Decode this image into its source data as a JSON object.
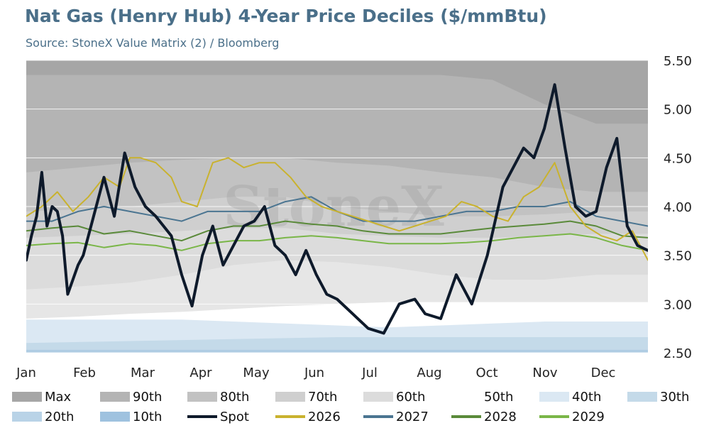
{
  "header": {
    "title": "Nat Gas (Henry Hub) 4-Year Price Deciles ($/mmBtu)",
    "subtitle": "Source: StoneX Value Matrix (2) / Bloomberg"
  },
  "watermark": "StoneX",
  "chart_data": {
    "type": "area",
    "title": "Nat Gas (Henry Hub) 4-Year Price Deciles ($/mmBtu)",
    "x_ticks": [
      "Jan",
      "Feb",
      "Mar",
      "Apr",
      "May",
      "Jun",
      "Jul",
      "Aug",
      "Oct",
      "Nov",
      "Dec"
    ],
    "x_domain": [
      0,
      12
    ],
    "y_ticks": [
      "5.50",
      "5.00",
      "4.50",
      "4.00",
      "3.50",
      "3.00",
      "2.50"
    ],
    "ylim": [
      2.5,
      5.5
    ],
    "y_axis_side": "right",
    "grid": "horizontal",
    "legend_position": "bottom",
    "bands": {
      "x": [
        0,
        1,
        2,
        3,
        4,
        5,
        6,
        7,
        8,
        9,
        10,
        11,
        12
      ],
      "series": [
        {
          "name": "Max",
          "color": "#a6a6a6",
          "values": [
            5.5,
            5.5,
            5.5,
            5.5,
            5.5,
            5.5,
            5.5,
            5.5,
            5.5,
            5.5,
            5.5,
            5.5,
            5.5
          ]
        },
        {
          "name": "90th",
          "color": "#b4b4b4",
          "values": [
            5.35,
            5.35,
            5.35,
            5.35,
            5.35,
            5.35,
            5.35,
            5.35,
            5.35,
            5.3,
            5.05,
            4.85,
            4.85
          ]
        },
        {
          "name": "80th",
          "color": "#c2c2c2",
          "values": [
            4.35,
            4.4,
            4.45,
            4.48,
            4.5,
            4.5,
            4.45,
            4.42,
            4.35,
            4.3,
            4.2,
            4.15,
            4.15
          ]
        },
        {
          "name": "70th",
          "color": "#cfcfcf",
          "values": [
            3.95,
            3.97,
            4.0,
            4.05,
            4.1,
            4.1,
            4.0,
            3.95,
            3.9,
            3.9,
            3.92,
            3.95,
            3.95
          ]
        },
        {
          "name": "60th",
          "color": "#dcdcdc",
          "values": [
            3.68,
            3.7,
            3.72,
            3.75,
            3.78,
            3.78,
            3.72,
            3.7,
            3.68,
            3.68,
            3.7,
            3.72,
            3.72
          ]
        },
        {
          "name": "50th",
          "color": "#e6e6e6",
          "values": [
            3.15,
            3.18,
            3.22,
            3.3,
            3.4,
            3.45,
            3.43,
            3.38,
            3.3,
            3.25,
            3.25,
            3.3,
            3.3
          ]
        },
        {
          "name": "40th",
          "color": "#ffffff",
          "values": [
            2.85,
            2.87,
            2.9,
            2.92,
            2.95,
            2.98,
            3.0,
            3.02,
            3.02,
            3.02,
            3.02,
            3.02,
            3.02
          ]
        },
        {
          "name": "30th",
          "color": "#dbe8f3",
          "values": [
            2.84,
            2.84,
            2.84,
            2.84,
            2.82,
            2.8,
            2.78,
            2.76,
            2.78,
            2.8,
            2.82,
            2.82,
            2.82
          ]
        },
        {
          "name": "20th",
          "color": "#c4dae9",
          "values": [
            2.6,
            2.61,
            2.62,
            2.63,
            2.64,
            2.65,
            2.66,
            2.66,
            2.66,
            2.66,
            2.66,
            2.66,
            2.66
          ]
        },
        {
          "name": "10th",
          "color": "#afcce3",
          "values": [
            2.53,
            2.53,
            2.53,
            2.53,
            2.53,
            2.53,
            2.53,
            2.53,
            2.53,
            2.53,
            2.53,
            2.53,
            2.53
          ]
        }
      ]
    },
    "lines": [
      {
        "name": "Spot",
        "color": "#0e1a2b",
        "width": 4,
        "x": [
          0,
          0.1,
          0.2,
          0.3,
          0.4,
          0.5,
          0.6,
          0.7,
          0.8,
          0.9,
          1.0,
          1.1,
          1.3,
          1.5,
          1.7,
          1.9,
          2.1,
          2.2,
          2.3,
          2.5,
          2.8,
          3.0,
          3.2,
          3.4,
          3.6,
          3.8,
          4.0,
          4.2,
          4.4,
          4.6,
          4.8,
          5.0,
          5.2,
          5.4,
          5.6,
          5.8,
          6.0,
          6.3,
          6.6,
          6.9,
          7.2,
          7.5,
          7.7,
          8.0,
          8.3,
          8.6,
          8.9,
          9.2,
          9.4,
          9.6,
          9.8,
          10.0,
          10.2,
          10.4,
          10.6,
          10.8,
          11.0,
          11.2,
          11.4,
          11.6,
          11.8,
          12.0
        ],
        "values": [
          3.45,
          3.7,
          3.9,
          4.35,
          3.8,
          4.0,
          3.95,
          3.7,
          3.1,
          3.25,
          3.4,
          3.5,
          3.9,
          4.3,
          3.9,
          4.55,
          4.2,
          4.1,
          4.0,
          3.9,
          3.7,
          3.3,
          2.98,
          3.5,
          3.8,
          3.4,
          3.6,
          3.8,
          3.85,
          4.0,
          3.6,
          3.5,
          3.3,
          3.55,
          3.3,
          3.1,
          3.05,
          2.9,
          2.75,
          2.7,
          3.0,
          3.05,
          2.9,
          2.85,
          3.3,
          3.0,
          3.5,
          4.2,
          4.4,
          4.6,
          4.5,
          4.8,
          5.25,
          4.6,
          4.0,
          3.9,
          3.95,
          4.4,
          4.7,
          3.8,
          3.6,
          3.55
        ]
      },
      {
        "name": "2026",
        "color": "#c9b22e",
        "width": 2,
        "x": [
          0,
          0.3,
          0.6,
          0.9,
          1.2,
          1.5,
          1.8,
          2.0,
          2.2,
          2.5,
          2.8,
          3.0,
          3.3,
          3.6,
          3.9,
          4.2,
          4.5,
          4.8,
          5.1,
          5.4,
          5.7,
          6.0,
          6.3,
          6.6,
          6.9,
          7.2,
          7.5,
          7.8,
          8.1,
          8.4,
          8.7,
          9.0,
          9.3,
          9.6,
          9.9,
          10.2,
          10.5,
          10.8,
          11.1,
          11.4,
          11.7,
          12.0
        ],
        "values": [
          3.9,
          4.0,
          4.15,
          3.95,
          4.1,
          4.3,
          4.2,
          4.5,
          4.5,
          4.45,
          4.3,
          4.05,
          4.0,
          4.45,
          4.5,
          4.4,
          4.45,
          4.45,
          4.3,
          4.1,
          4.0,
          3.95,
          3.9,
          3.85,
          3.8,
          3.75,
          3.8,
          3.85,
          3.9,
          4.05,
          4.0,
          3.9,
          3.85,
          4.1,
          4.2,
          4.45,
          4.0,
          3.8,
          3.7,
          3.65,
          3.75,
          3.45
        ]
      },
      {
        "name": "2027",
        "color": "#4b7591",
        "width": 2,
        "x": [
          0,
          0.5,
          1.0,
          1.5,
          2.0,
          2.5,
          3.0,
          3.5,
          4.0,
          4.5,
          5.0,
          5.5,
          6.0,
          6.5,
          7.0,
          7.5,
          8.0,
          8.5,
          9.0,
          9.5,
          10.0,
          10.5,
          11.0,
          11.5,
          12.0
        ],
        "values": [
          3.85,
          3.85,
          3.95,
          4.0,
          3.95,
          3.9,
          3.85,
          3.95,
          3.95,
          3.95,
          4.05,
          4.1,
          3.95,
          3.85,
          3.85,
          3.85,
          3.9,
          3.95,
          3.95,
          4.0,
          4.0,
          4.05,
          3.9,
          3.85,
          3.8
        ]
      },
      {
        "name": "2028",
        "color": "#5a8a3a",
        "width": 2,
        "x": [
          0,
          0.5,
          1.0,
          1.5,
          2.0,
          2.5,
          3.0,
          3.5,
          4.0,
          4.5,
          5.0,
          5.5,
          6.0,
          6.5,
          7.0,
          7.5,
          8.0,
          8.5,
          9.0,
          9.5,
          10.0,
          10.5,
          11.0,
          11.5,
          12.0
        ],
        "values": [
          3.75,
          3.78,
          3.8,
          3.72,
          3.75,
          3.7,
          3.65,
          3.75,
          3.8,
          3.8,
          3.85,
          3.82,
          3.8,
          3.75,
          3.72,
          3.72,
          3.72,
          3.75,
          3.78,
          3.8,
          3.82,
          3.85,
          3.8,
          3.7,
          3.68
        ]
      },
      {
        "name": "2029",
        "color": "#7ab648",
        "width": 2,
        "x": [
          0,
          0.5,
          1.0,
          1.5,
          2.0,
          2.5,
          3.0,
          3.5,
          4.0,
          4.5,
          5.0,
          5.5,
          6.0,
          6.5,
          7.0,
          7.5,
          8.0,
          8.5,
          9.0,
          9.5,
          10.0,
          10.5,
          11.0,
          11.5,
          12.0
        ],
        "values": [
          3.6,
          3.62,
          3.63,
          3.58,
          3.62,
          3.6,
          3.55,
          3.62,
          3.65,
          3.65,
          3.68,
          3.7,
          3.68,
          3.65,
          3.62,
          3.62,
          3.62,
          3.63,
          3.65,
          3.68,
          3.7,
          3.72,
          3.68,
          3.6,
          3.55
        ]
      }
    ]
  },
  "legend": [
    {
      "label": "Max",
      "kind": "swatch",
      "color": "#a6a6a6"
    },
    {
      "label": "90th",
      "kind": "swatch",
      "color": "#b4b4b4"
    },
    {
      "label": "80th",
      "kind": "swatch",
      "color": "#c2c2c2"
    },
    {
      "label": "70th",
      "kind": "swatch",
      "color": "#cfcfcf"
    },
    {
      "label": "60th",
      "kind": "swatch",
      "color": "#dcdcdc"
    },
    {
      "label": "50th",
      "kind": "swatch",
      "color": "#ffffff"
    },
    {
      "label": "40th",
      "kind": "swatch",
      "color": "#dbe8f3"
    },
    {
      "label": "30th",
      "kind": "swatch",
      "color": "#c4dae9"
    },
    {
      "label": "20th",
      "kind": "swatch",
      "color": "#b9d3e7"
    },
    {
      "label": "10th",
      "kind": "swatch",
      "color": "#9fc2df"
    },
    {
      "label": "Spot",
      "kind": "line",
      "color": "#0e1a2b"
    },
    {
      "label": "2026",
      "kind": "line",
      "color": "#c9b22e"
    },
    {
      "label": "2027",
      "kind": "line",
      "color": "#4b7591"
    },
    {
      "label": "2028",
      "kind": "line",
      "color": "#5a8a3a"
    },
    {
      "label": "2029",
      "kind": "line",
      "color": "#7ab648"
    }
  ]
}
